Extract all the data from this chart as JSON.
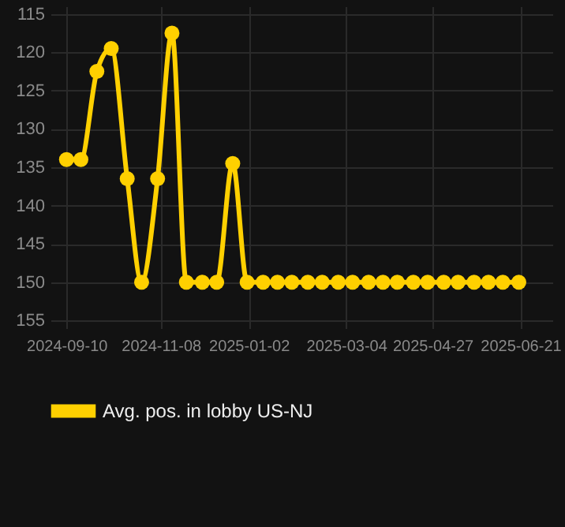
{
  "chart_data": {
    "type": "line",
    "x": [
      "2024-09-10",
      "2024-09-19",
      "2024-09-29",
      "2024-10-08",
      "2024-10-18",
      "2024-10-27",
      "2024-11-06",
      "2024-11-15",
      "2024-11-24",
      "2024-12-04",
      "2024-12-13",
      "2024-12-23",
      "2025-01-01",
      "2025-01-11",
      "2025-01-20",
      "2025-01-29",
      "2025-02-08",
      "2025-02-17",
      "2025-02-27",
      "2025-03-08",
      "2025-03-18",
      "2025-03-27",
      "2025-04-05",
      "2025-04-15",
      "2025-04-24",
      "2025-05-04",
      "2025-05-13",
      "2025-05-23",
      "2025-06-01",
      "2025-06-10",
      "2025-06-20"
    ],
    "series": [
      {
        "name": "Avg. pos. in lobby US-NJ",
        "color": "#ffd000",
        "values": [
          134,
          134,
          122.5,
          119.5,
          136.5,
          150,
          136.5,
          117.5,
          150,
          150,
          150,
          134.5,
          150,
          150,
          150,
          150,
          150,
          150,
          150,
          150,
          150,
          150,
          150,
          150,
          150,
          150,
          150,
          150,
          150,
          150,
          150
        ]
      }
    ],
    "xlim": [
      "2024-08-31",
      "2025-07-11"
    ],
    "xticks": [
      "2024-09-10",
      "2024-11-08",
      "2025-01-02",
      "2025-03-04",
      "2025-04-27",
      "2025-06-21"
    ],
    "ylim": [
      156,
      114
    ],
    "yticks": [
      115,
      120,
      125,
      130,
      135,
      140,
      145,
      150,
      155
    ],
    "grid": true,
    "legend": "bottom",
    "marker": "circle",
    "line_style": "solid"
  }
}
